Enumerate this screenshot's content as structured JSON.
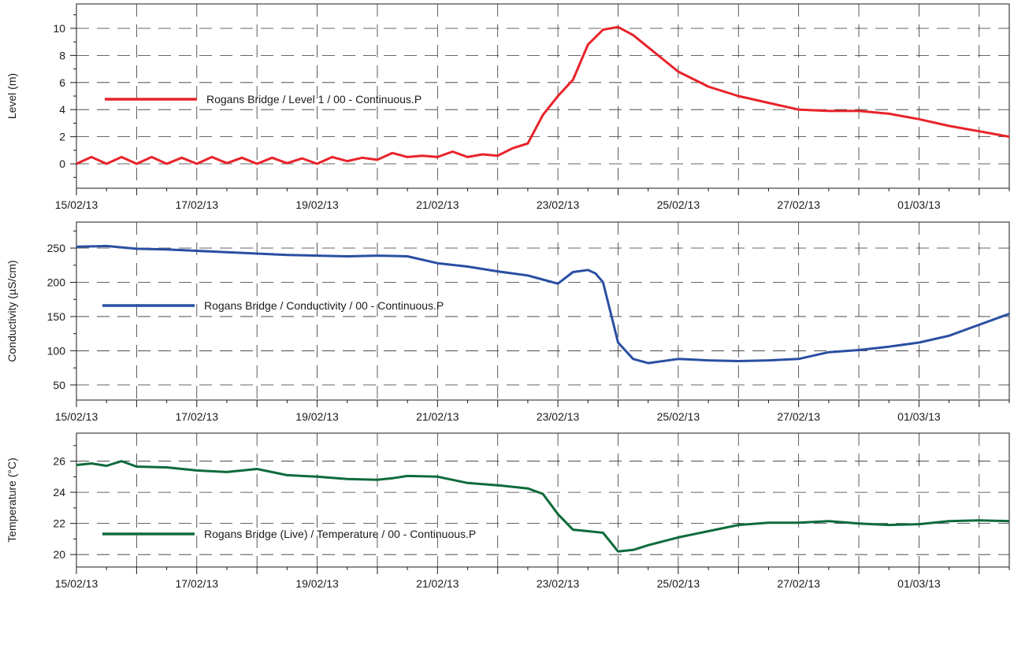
{
  "chart_data": [
    {
      "type": "line",
      "ylabel": "Level (m)",
      "ylim": [
        -1.8,
        11.8
      ],
      "yticks": [
        0,
        2,
        4,
        6,
        8,
        10
      ],
      "xlim": [
        "15/02/13",
        "02/03/13 12:00"
      ],
      "xticks": [
        "15/02/13",
        "17/02/13",
        "19/02/13",
        "21/02/13",
        "23/02/13",
        "25/02/13",
        "27/02/13",
        "01/03/13"
      ],
      "grid": true,
      "legend_position": "center-left",
      "color": "#e8232a",
      "series": [
        {
          "name": "Rogans Bridge / Level 1 / 00 - Continuous.P",
          "x": [
            "15/02/13 00:00",
            "15/02/13 06:00",
            "15/02/13 12:00",
            "15/02/13 18:00",
            "16/02/13 00:00",
            "16/02/13 06:00",
            "16/02/13 12:00",
            "16/02/13 18:00",
            "17/02/13 00:00",
            "17/02/13 06:00",
            "17/02/13 12:00",
            "17/02/13 18:00",
            "18/02/13 00:00",
            "18/02/13 06:00",
            "18/02/13 12:00",
            "18/02/13 18:00",
            "19/02/13 00:00",
            "19/02/13 06:00",
            "19/02/13 12:00",
            "19/02/13 18:00",
            "20/02/13 00:00",
            "20/02/13 06:00",
            "20/02/13 12:00",
            "20/02/13 18:00",
            "21/02/13 00:00",
            "21/02/13 06:00",
            "21/02/13 12:00",
            "21/02/13 18:00",
            "22/02/13 00:00",
            "22/02/13 06:00",
            "22/02/13 12:00",
            "22/02/13 18:00",
            "23/02/13 00:00",
            "23/02/13 06:00",
            "23/02/13 12:00",
            "23/02/13 18:00",
            "24/02/13 00:00",
            "24/02/13 06:00",
            "24/02/13 12:00",
            "24/02/13 18:00",
            "25/02/13 00:00",
            "25/02/13 12:00",
            "26/02/13 00:00",
            "26/02/13 12:00",
            "27/02/13 00:00",
            "27/02/13 12:00",
            "28/02/13 00:00",
            "28/02/13 12:00",
            "01/03/13 00:00",
            "01/03/13 12:00",
            "02/03/13 00:00",
            "02/03/13 12:00"
          ],
          "y": [
            0.0,
            0.5,
            0.0,
            0.5,
            0.0,
            0.5,
            0.0,
            0.45,
            0.0,
            0.5,
            0.05,
            0.45,
            0.0,
            0.45,
            0.05,
            0.4,
            0.0,
            0.5,
            0.2,
            0.45,
            0.3,
            0.8,
            0.5,
            0.6,
            0.5,
            0.9,
            0.5,
            0.7,
            0.6,
            1.15,
            1.5,
            3.6,
            5.0,
            6.2,
            8.8,
            9.9,
            10.1,
            9.5,
            8.6,
            7.7,
            6.8,
            5.7,
            5.0,
            4.5,
            4.0,
            3.9,
            3.9,
            3.7,
            3.3,
            2.8,
            2.4,
            2.0
          ]
        }
      ]
    },
    {
      "type": "line",
      "ylabel": "Conductivity (µS/cm)",
      "ylim": [
        28,
        288
      ],
      "yticks": [
        50,
        100,
        150,
        200,
        250
      ],
      "xlim": [
        "15/02/13",
        "02/03/13 12:00"
      ],
      "xticks": [
        "15/02/13",
        "17/02/13",
        "19/02/13",
        "21/02/13",
        "23/02/13",
        "25/02/13",
        "27/02/13",
        "01/03/13"
      ],
      "grid": true,
      "legend_position": "center-left",
      "color": "#2a4fa2",
      "series": [
        {
          "name": "Rogans Bridge / Conductivity / 00 - Continuous.P",
          "x": [
            "15/02/13 00:00",
            "15/02/13 12:00",
            "16/02/13 00:00",
            "16/02/13 12:00",
            "17/02/13 00:00",
            "17/02/13 12:00",
            "18/02/13 00:00",
            "18/02/13 12:00",
            "19/02/13 00:00",
            "19/02/13 12:00",
            "20/02/13 00:00",
            "20/02/13 12:00",
            "21/02/13 00:00",
            "21/02/13 12:00",
            "22/02/13 00:00",
            "22/02/13 12:00",
            "22/02/13 18:00",
            "23/02/13 00:00",
            "23/02/13 06:00",
            "23/02/13 12:00",
            "23/02/13 15:00",
            "23/02/13 18:00",
            "24/02/13 00:00",
            "24/02/13 06:00",
            "24/02/13 12:00",
            "25/02/13 00:00",
            "25/02/13 12:00",
            "26/02/13 00:00",
            "26/02/13 12:00",
            "27/02/13 00:00",
            "27/02/13 12:00",
            "28/02/13 00:00",
            "28/02/13 12:00",
            "01/03/13 00:00",
            "01/03/13 12:00",
            "02/03/13 00:00",
            "02/03/13 12:00"
          ],
          "y": [
            252,
            253,
            249,
            248,
            246,
            244,
            242,
            240,
            239,
            238,
            239,
            238,
            228,
            223,
            216,
            210,
            204,
            198,
            215,
            218,
            213,
            200,
            112,
            88,
            82,
            88,
            86,
            85,
            86,
            88,
            98,
            101,
            106,
            112,
            122,
            138,
            154
          ]
        }
      ]
    },
    {
      "type": "line",
      "ylabel": "Temperature (°C)",
      "ylim": [
        19.2,
        27.8
      ],
      "yticks": [
        20,
        22,
        24,
        26
      ],
      "xlim": [
        "15/02/13",
        "02/03/13 12:00"
      ],
      "xticks": [
        "15/02/13",
        "17/02/13",
        "19/02/13",
        "21/02/13",
        "23/02/13",
        "25/02/13",
        "27/02/13",
        "01/03/13"
      ],
      "grid": true,
      "legend_position": "bottom-left",
      "color": "#0e6b3a",
      "series": [
        {
          "name": "Rogans Bridge (Live) / Temperature / 00 - Continuous.P",
          "x": [
            "15/02/13 00:00",
            "15/02/13 06:00",
            "15/02/13 12:00",
            "15/02/13 18:00",
            "16/02/13 00:00",
            "16/02/13 12:00",
            "17/02/13 00:00",
            "17/02/13 12:00",
            "18/02/13 00:00",
            "18/02/13 12:00",
            "19/02/13 00:00",
            "19/02/13 12:00",
            "20/02/13 00:00",
            "20/02/13 06:00",
            "20/02/13 12:00",
            "21/02/13 00:00",
            "21/02/13 12:00",
            "22/02/13 00:00",
            "22/02/13 12:00",
            "22/02/13 18:00",
            "23/02/13 00:00",
            "23/02/13 06:00",
            "23/02/13 12:00",
            "23/02/13 18:00",
            "24/02/13 00:00",
            "24/02/13 06:00",
            "24/02/13 12:00",
            "25/02/13 00:00",
            "25/02/13 12:00",
            "26/02/13 00:00",
            "26/02/13 12:00",
            "27/02/13 00:00",
            "27/02/13 12:00",
            "28/02/13 00:00",
            "28/02/13 12:00",
            "01/03/13 00:00",
            "01/03/13 12:00",
            "02/03/13 00:00",
            "02/03/13 12:00"
          ],
          "y": [
            25.75,
            25.85,
            25.7,
            26.0,
            25.65,
            25.6,
            25.4,
            25.3,
            25.5,
            25.1,
            25.0,
            24.85,
            24.8,
            24.9,
            25.05,
            25.0,
            24.6,
            24.45,
            24.25,
            23.9,
            22.6,
            21.6,
            21.5,
            21.4,
            20.2,
            20.3,
            20.6,
            21.1,
            21.5,
            21.9,
            22.05,
            22.05,
            22.15,
            22.0,
            21.9,
            21.95,
            22.15,
            22.2,
            22.15
          ]
        }
      ]
    }
  ]
}
